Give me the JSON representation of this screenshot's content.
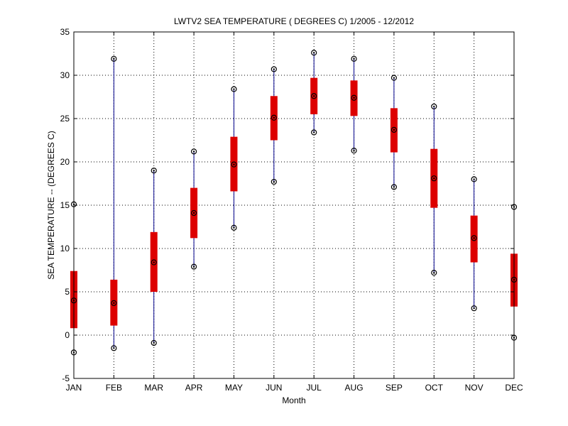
{
  "chart_data": {
    "type": "box",
    "title": "LWTV2  SEA TEMPERATURE ( DEGREES C) 1/2005 - 12/2012",
    "xlabel": "Month",
    "ylabel": "SEA TEMPERATURE -- (DEGREES C)",
    "ylim": [
      -5,
      35
    ],
    "yticks": [
      -5,
      0,
      5,
      10,
      15,
      20,
      25,
      30,
      35
    ],
    "grid": true,
    "categories": [
      "JAN",
      "FEB",
      "MAR",
      "APR",
      "MAY",
      "JUN",
      "JUL",
      "AUG",
      "SEP",
      "OCT",
      "NOV",
      "DEC"
    ],
    "min": [
      -2.0,
      -1.5,
      -0.9,
      7.9,
      12.4,
      17.7,
      23.4,
      21.3,
      17.1,
      7.2,
      3.1,
      -0.3
    ],
    "q1": [
      0.8,
      1.1,
      5.0,
      11.2,
      16.6,
      22.5,
      25.5,
      25.3,
      21.1,
      14.7,
      8.4,
      3.3
    ],
    "median": [
      4.0,
      3.7,
      8.4,
      14.1,
      19.7,
      25.1,
      27.6,
      27.4,
      23.7,
      18.1,
      11.2,
      6.4
    ],
    "q3": [
      7.4,
      6.4,
      11.9,
      17.0,
      22.9,
      27.6,
      29.7,
      29.4,
      26.2,
      21.5,
      13.8,
      9.4
    ],
    "max": [
      15.1,
      31.9,
      19.0,
      21.2,
      28.4,
      30.7,
      32.6,
      31.9,
      29.7,
      26.4,
      18.0,
      14.8
    ],
    "colors": {
      "box": "#dd0000",
      "whisker": "#00008b",
      "marker": "#000000",
      "grid": "#000000"
    }
  }
}
